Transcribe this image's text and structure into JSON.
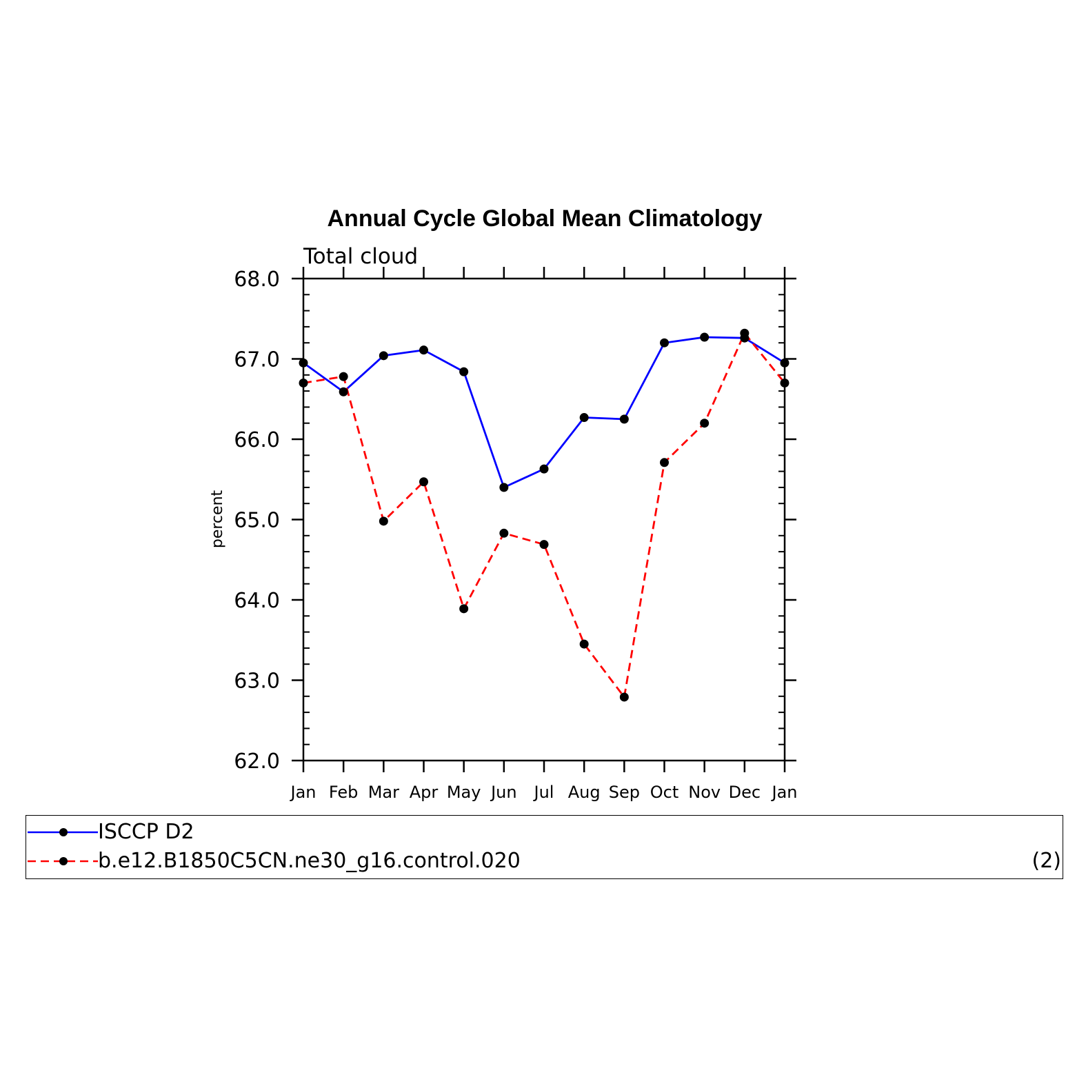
{
  "chart_data": {
    "type": "line",
    "title": "Annual Cycle Global Mean Climatology",
    "subtitle": "Total cloud",
    "xlabel": "",
    "ylabel": "percent",
    "categories": [
      "Jan",
      "Feb",
      "Mar",
      "Apr",
      "May",
      "Jun",
      "Jul",
      "Aug",
      "Sep",
      "Oct",
      "Nov",
      "Dec",
      "Jan"
    ],
    "ylim": [
      62.0,
      68.0
    ],
    "yticks": [
      "62.0",
      "63.0",
      "64.0",
      "65.0",
      "66.0",
      "67.0",
      "68.0"
    ],
    "series": [
      {
        "name": "ISCCP D2",
        "color": "#0000ff",
        "style": "solid",
        "values": [
          66.95,
          66.59,
          67.04,
          67.11,
          66.84,
          65.4,
          65.63,
          66.27,
          66.25,
          67.2,
          67.27,
          67.26,
          66.95
        ]
      },
      {
        "name": "b.e12.B1850C5CN.ne30_g16.control.020",
        "color": "#ff0000",
        "style": "dashed",
        "values": [
          66.7,
          66.78,
          64.98,
          65.47,
          63.89,
          64.83,
          64.69,
          63.45,
          62.79,
          65.71,
          66.2,
          67.32,
          66.7
        ]
      }
    ],
    "marker": "filled-circle",
    "grid": false,
    "legend_placement": "bottom"
  },
  "legend": {
    "count_label": "(2)"
  }
}
